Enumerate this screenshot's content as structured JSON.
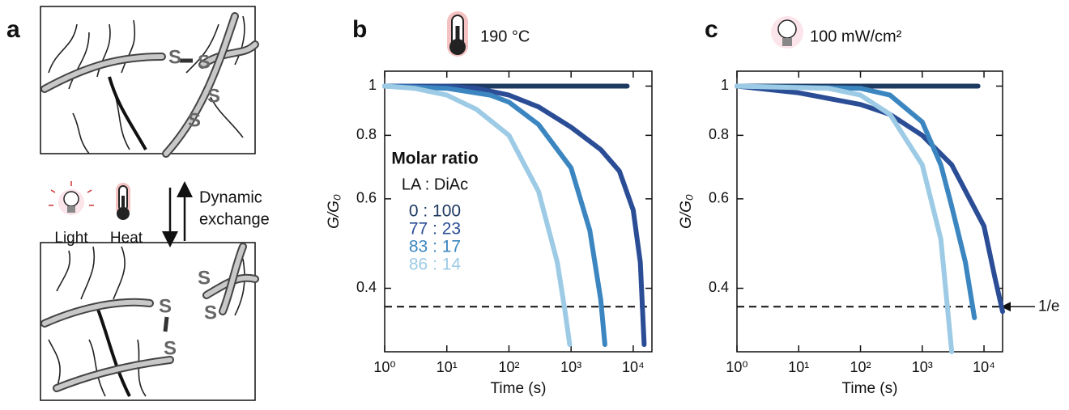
{
  "diagram": {
    "panel_label": "a",
    "light_label": "Light",
    "heat_label": "Heat",
    "exchange_label": [
      "Dynamic",
      "exchange"
    ],
    "sulfur_label": "S"
  },
  "chart_data": [
    {
      "type": "line",
      "panel_label": "b",
      "annotation": "190 °C",
      "xlabel": "Time (s)",
      "ylabel": "G/G₀",
      "log_x": true,
      "log_y": true,
      "xlim": [
        1,
        20000
      ],
      "ylim": [
        0.3,
        1.07
      ],
      "xticks": [
        {
          "value": 1,
          "label": "10⁰"
        },
        {
          "value": 10,
          "label": "10¹"
        },
        {
          "value": 100,
          "label": "10²"
        },
        {
          "value": 1000,
          "label": "10³"
        },
        {
          "value": 10000,
          "label": "10⁴"
        }
      ],
      "yticks": [
        0.4,
        0.6,
        0.8,
        1
      ],
      "reference_line": 0.368,
      "legend_title": "Molar ratio",
      "legend_subtitle": "LA : DiAc",
      "series": [
        {
          "name": "0 : 100",
          "color": "#1e3a60",
          "x": [
            1,
            10,
            100,
            1000,
            8000
          ],
          "values": [
            1,
            1,
            1,
            1,
            1
          ]
        },
        {
          "name": "77 : 23",
          "color": "#2a4d96",
          "x": [
            1,
            10,
            30,
            100,
            300,
            1000,
            3000,
            6000,
            10000,
            13000,
            15000
          ],
          "values": [
            1,
            1,
            0.99,
            0.96,
            0.91,
            0.83,
            0.75,
            0.68,
            0.57,
            0.45,
            0.31
          ]
        },
        {
          "name": "83 : 17",
          "color": "#3b86c0",
          "x": [
            1,
            10,
            50,
            100,
            300,
            1000,
            2000,
            3000,
            3500
          ],
          "values": [
            1,
            0.99,
            0.96,
            0.93,
            0.84,
            0.69,
            0.52,
            0.38,
            0.31
          ]
        },
        {
          "name": "86 : 14",
          "color": "#9dcbe5",
          "x": [
            1,
            3,
            10,
            30,
            100,
            300,
            600,
            800,
            950
          ],
          "values": [
            1,
            0.99,
            0.96,
            0.9,
            0.8,
            0.62,
            0.45,
            0.36,
            0.31
          ]
        }
      ]
    },
    {
      "type": "line",
      "panel_label": "c",
      "annotation": "100 mW/cm²",
      "xlabel": "Time (s)",
      "ylabel": "G/G₀",
      "log_x": true,
      "log_y": true,
      "xlim": [
        1,
        20000
      ],
      "ylim": [
        0.3,
        1.07
      ],
      "xticks": [
        {
          "value": 1,
          "label": "10⁰"
        },
        {
          "value": 10,
          "label": "10¹"
        },
        {
          "value": 100,
          "label": "10²"
        },
        {
          "value": 1000,
          "label": "10³"
        },
        {
          "value": 10000,
          "label": "10⁴"
        }
      ],
      "yticks": [
        0.4,
        0.6,
        0.8,
        1
      ],
      "reference_line": 0.368,
      "reference_label": "1/e",
      "series": [
        {
          "color": "#1e3a60",
          "x": [
            1,
            10,
            100,
            1000,
            8000
          ],
          "values": [
            1,
            1,
            1,
            1,
            1
          ]
        },
        {
          "color": "#2a4d96",
          "x": [
            1,
            10,
            100,
            300,
            1000,
            3000,
            10000,
            15000,
            20000
          ],
          "values": [
            1,
            0.97,
            0.92,
            0.88,
            0.8,
            0.7,
            0.53,
            0.42,
            0.36
          ]
        },
        {
          "color": "#3b86c0",
          "x": [
            1,
            100,
            300,
            1000,
            2000,
            3000,
            5000,
            7000
          ],
          "values": [
            1,
            0.99,
            0.96,
            0.85,
            0.7,
            0.58,
            0.45,
            0.35
          ]
        },
        {
          "color": "#9dcbe5",
          "x": [
            1,
            30,
            100,
            300,
            1000,
            2000,
            3000
          ],
          "values": [
            1,
            0.99,
            0.96,
            0.88,
            0.7,
            0.5,
            0.3
          ]
        }
      ]
    }
  ]
}
